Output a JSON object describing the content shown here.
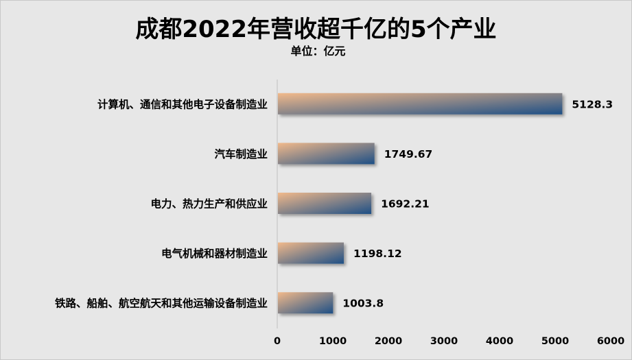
{
  "chart_data": {
    "type": "bar",
    "orientation": "horizontal",
    "title": "成都2022年营收超千亿的5个产业",
    "subtitle": "单位：亿元",
    "categories": [
      "计算机、通信和其他电子设备制造业",
      "汽车制造业",
      "电力、热力生产和供应业",
      "电气机械和器材制造业",
      "铁路、船舶、航空航天和其他运输设备制造业"
    ],
    "values": [
      5128.3,
      1749.67,
      1692.21,
      1198.12,
      1003.8
    ],
    "value_labels": [
      "5128.3",
      "1749.67",
      "1692.21",
      "1198.12",
      "1003.8"
    ],
    "xlim": [
      0,
      6000
    ],
    "x_ticks": [
      0,
      1000,
      2000,
      3000,
      4000,
      5000,
      6000
    ],
    "grid": false,
    "legend": "none",
    "colors": {
      "bar_start": "#f2b98a",
      "bar_end": "#1d4f86",
      "background": "#e7e7e7",
      "axis": "#bfbfbf"
    }
  }
}
